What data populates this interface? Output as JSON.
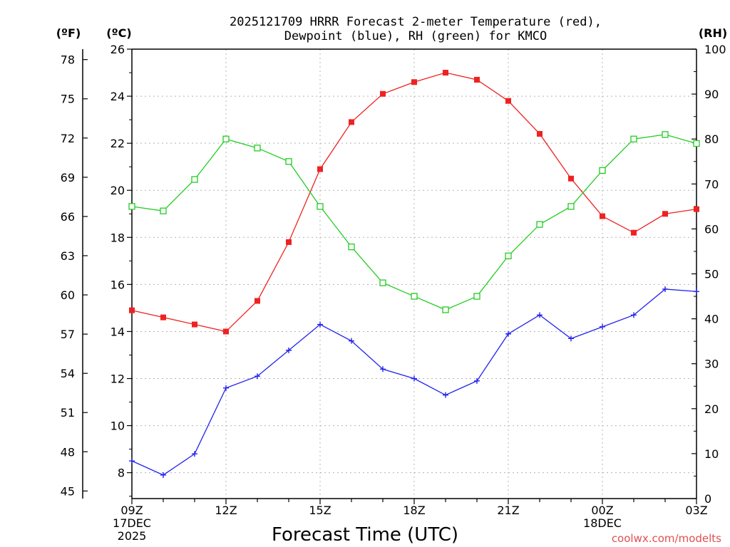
{
  "chart_data": {
    "type": "line",
    "title_line1": "2025121709 HRRR Forecast 2-meter Temperature (red),",
    "title_line2": "Dewpoint (blue), RH (green) for KMCO",
    "xlabel": "Forecast Time (UTC)",
    "credit": "coolwx.com/modelts",
    "units": {
      "fahrenheit": "(ºF)",
      "celsius": "(ºC)",
      "rh": "(RH)"
    },
    "x_hours": [
      0,
      1,
      2,
      3,
      4,
      5,
      6,
      7,
      8,
      9,
      10,
      11,
      12,
      13,
      14,
      15,
      16,
      17,
      18
    ],
    "x_ticks": [
      {
        "hour": 0,
        "labels": [
          "09Z",
          "17DEC",
          "2025"
        ]
      },
      {
        "hour": 3,
        "labels": [
          "12Z"
        ]
      },
      {
        "hour": 6,
        "labels": [
          "15Z"
        ]
      },
      {
        "hour": 9,
        "labels": [
          "18Z"
        ]
      },
      {
        "hour": 12,
        "labels": [
          "21Z"
        ]
      },
      {
        "hour": 15,
        "labels": [
          "00Z",
          "18DEC"
        ]
      },
      {
        "hour": 18,
        "labels": [
          "03Z"
        ]
      }
    ],
    "celsius_axis": {
      "range": [
        6.9,
        26
      ],
      "ticks": [
        8,
        10,
        12,
        14,
        16,
        18,
        20,
        22,
        24,
        26
      ]
    },
    "fahrenheit_axis": {
      "ticks": [
        45,
        48,
        51,
        54,
        57,
        60,
        63,
        66,
        69,
        72,
        75,
        78
      ]
    },
    "rh_axis": {
      "range": [
        0,
        100
      ],
      "ticks": [
        0,
        10,
        20,
        30,
        40,
        50,
        60,
        70,
        80,
        90,
        100
      ]
    },
    "series": [
      {
        "name": "Temperature",
        "color": "#ee2222",
        "marker": "filled-square",
        "axis": "celsius",
        "values": [
          14.9,
          14.6,
          14.3,
          14.0,
          15.3,
          17.8,
          20.9,
          22.9,
          24.1,
          24.6,
          25.0,
          24.7,
          23.8,
          22.4,
          20.5,
          18.9,
          18.2,
          19.0,
          19.2
        ]
      },
      {
        "name": "Dewpoint",
        "color": "#2222ee",
        "marker": "plus",
        "axis": "celsius",
        "values": [
          8.5,
          7.9,
          8.8,
          11.6,
          12.1,
          13.2,
          14.3,
          13.6,
          12.4,
          12.0,
          11.3,
          11.9,
          13.9,
          14.7,
          13.7,
          14.2,
          14.7,
          15.8,
          15.7
        ]
      },
      {
        "name": "RH",
        "color": "#22cc22",
        "marker": "open-square",
        "axis": "rh",
        "values": [
          65,
          64,
          71,
          80,
          78,
          75,
          65,
          56,
          48,
          45,
          42,
          45,
          54,
          61,
          65,
          73,
          80,
          81,
          79
        ]
      }
    ]
  }
}
